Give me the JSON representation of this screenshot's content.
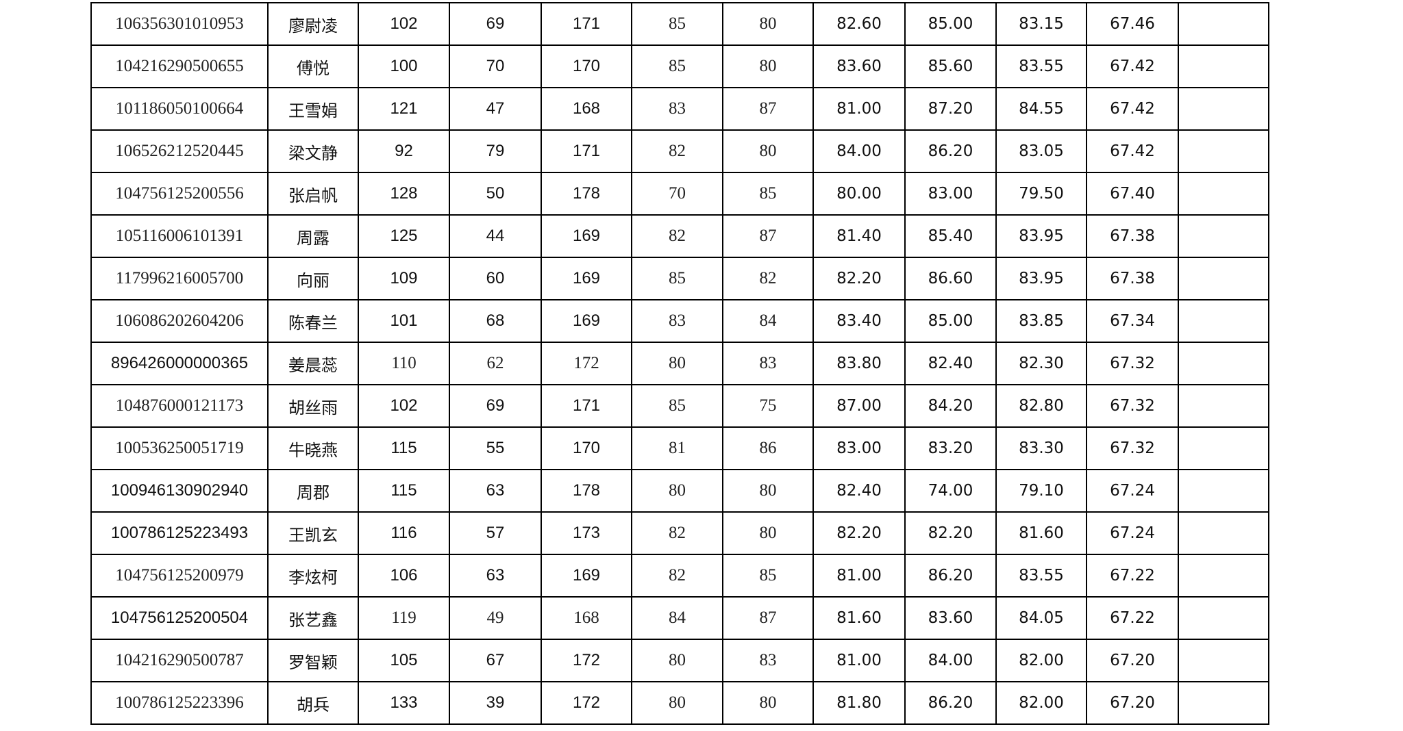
{
  "table": {
    "rows": [
      [
        "106356301010953",
        "廖尉凌",
        "102",
        "69",
        "171",
        "85",
        "80",
        "82.60",
        "85.00",
        "83.15",
        "67.46",
        ""
      ],
      [
        "104216290500655",
        "傅悦",
        "100",
        "70",
        "170",
        "85",
        "80",
        "83.60",
        "85.60",
        "83.55",
        "67.42",
        ""
      ],
      [
        "101186050100664",
        "王雪娟",
        "121",
        "47",
        "168",
        "83",
        "87",
        "81.00",
        "87.20",
        "84.55",
        "67.42",
        ""
      ],
      [
        "106526212520445",
        "梁文静",
        "92",
        "79",
        "171",
        "82",
        "80",
        "84.00",
        "86.20",
        "83.05",
        "67.42",
        ""
      ],
      [
        "104756125200556",
        "张启帆",
        "128",
        "50",
        "178",
        "70",
        "85",
        "80.00",
        "83.00",
        "79.50",
        "67.40",
        ""
      ],
      [
        "105116006101391",
        "周露",
        "125",
        "44",
        "169",
        "82",
        "87",
        "81.40",
        "85.40",
        "83.95",
        "67.38",
        ""
      ],
      [
        "117996216005700",
        "向丽",
        "109",
        "60",
        "169",
        "85",
        "82",
        "82.20",
        "86.60",
        "83.95",
        "67.38",
        ""
      ],
      [
        "106086202604206",
        "陈春兰",
        "101",
        "68",
        "169",
        "83",
        "84",
        "83.40",
        "85.00",
        "83.85",
        "67.34",
        ""
      ],
      [
        "896426000000365",
        "姜晨蕊",
        "110",
        "62",
        "172",
        "80",
        "83",
        "83.80",
        "82.40",
        "82.30",
        "67.32",
        ""
      ],
      [
        "104876000121173",
        "胡丝雨",
        "102",
        "69",
        "171",
        "85",
        "75",
        "87.00",
        "84.20",
        "82.80",
        "67.32",
        ""
      ],
      [
        "100536250051719",
        "牛晓燕",
        "115",
        "55",
        "170",
        "81",
        "86",
        "83.00",
        "83.20",
        "83.30",
        "67.32",
        ""
      ],
      [
        "100946130902940",
        "周郡",
        "115",
        "63",
        "178",
        "80",
        "80",
        "82.40",
        "74.00",
        "79.10",
        "67.24",
        ""
      ],
      [
        "100786125223493",
        "王凯玄",
        "116",
        "57",
        "173",
        "82",
        "80",
        "82.20",
        "82.20",
        "81.60",
        "67.24",
        ""
      ],
      [
        "104756125200979",
        "李炫柯",
        "106",
        "63",
        "169",
        "82",
        "85",
        "81.00",
        "86.20",
        "83.55",
        "67.22",
        ""
      ],
      [
        "104756125200504",
        "张艺鑫",
        "119",
        "49",
        "168",
        "84",
        "87",
        "81.60",
        "83.60",
        "84.05",
        "67.22",
        ""
      ],
      [
        "104216290500787",
        "罗智颖",
        "105",
        "67",
        "172",
        "80",
        "83",
        "81.00",
        "84.00",
        "82.00",
        "67.20",
        ""
      ],
      [
        "100786125223396",
        "胡兵",
        "133",
        "39",
        "172",
        "80",
        "80",
        "81.80",
        "86.20",
        "82.00",
        "67.20",
        ""
      ]
    ]
  }
}
